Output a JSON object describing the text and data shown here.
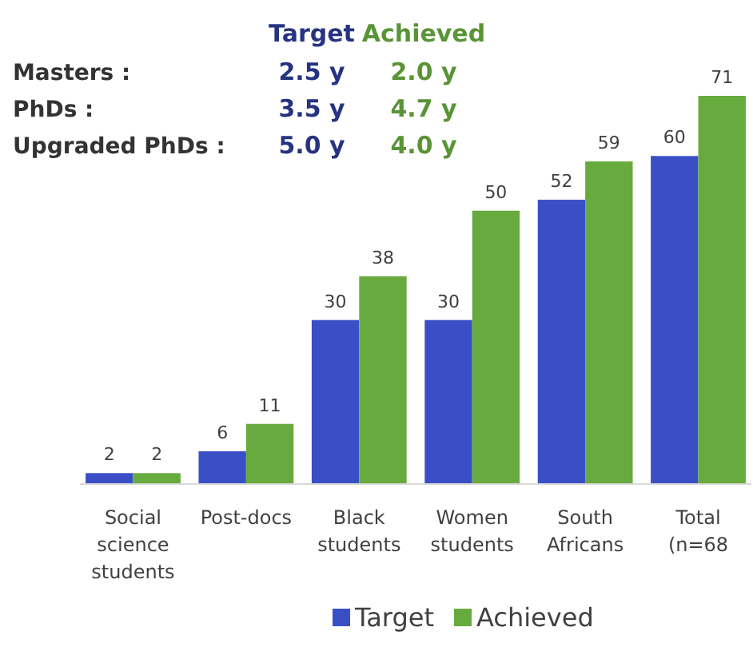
{
  "chart_data": {
    "type": "bar",
    "categories": [
      "Social science students",
      "Post-docs",
      "Black students",
      "Women students",
      "South Africans",
      "Total (n=68"
    ],
    "series": [
      {
        "name": "Target",
        "color": "#3a4fc6",
        "values": [
          2,
          6,
          30,
          30,
          52,
          60
        ]
      },
      {
        "name": "Achieved",
        "color": "#67ab3e",
        "values": [
          2,
          11,
          38,
          50,
          59,
          71
        ]
      }
    ],
    "data_labels": true,
    "legend": "bottom",
    "annotations": [
      "Target",
      "Achieved",
      "Masters :",
      "2.5 y",
      "2.0 y",
      "PhDs :",
      "3.5 y",
      "4.7 y",
      "Upgraded PhDs :",
      "5.0 y",
      "4.0 y"
    ]
  }
}
